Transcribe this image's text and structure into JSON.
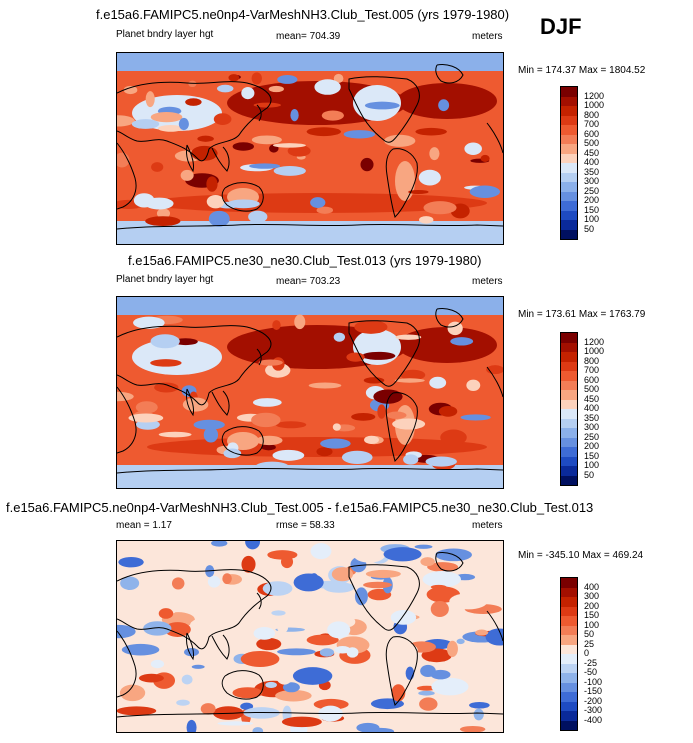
{
  "season": "DJF",
  "chart_data": [
    {
      "type": "heatmap",
      "title": "f.e15a6.FAMIPC5.ne0np4-VarMeshNH3.Club_Test.005 (yrs 1979-1980)",
      "variable": "Planet bndry layer hgt",
      "stat_text": "mean= 704.39",
      "units": "meters",
      "min": 174.37,
      "max": 1804.52,
      "minmax_text": "Min = 174.37 Max = 1804.52",
      "levels": [
        "1200",
        "1000",
        "800",
        "700",
        "600",
        "500",
        "450",
        "400",
        "350",
        "300",
        "250",
        "200",
        "150",
        "100",
        "50"
      ],
      "colors": [
        "#7a0000",
        "#a30f00",
        "#c42200",
        "#dd3a14",
        "#ee5a30",
        "#f37d56",
        "#f8a681",
        "#fcd2bc",
        "#dbe8f8",
        "#b5cff2",
        "#8bb0ea",
        "#6690e0",
        "#3e6cd6",
        "#1e4bc2",
        "#0a2a9a",
        "#001060"
      ]
    },
    {
      "type": "heatmap",
      "title": "f.e15a6.FAMIPC5.ne30_ne30.Club_Test.013 (yrs 1979-1980)",
      "variable": "Planet bndry layer hgt",
      "stat_text": "mean= 703.23",
      "units": "meters",
      "min": 173.61,
      "max": 1763.79,
      "minmax_text": "Min = 173.61 Max = 1763.79",
      "levels": [
        "1200",
        "1000",
        "800",
        "700",
        "600",
        "500",
        "450",
        "400",
        "350",
        "300",
        "250",
        "200",
        "150",
        "100",
        "50"
      ],
      "colors": [
        "#7a0000",
        "#a30f00",
        "#c42200",
        "#dd3a14",
        "#ee5a30",
        "#f37d56",
        "#f8a681",
        "#fcd2bc",
        "#dbe8f8",
        "#b5cff2",
        "#8bb0ea",
        "#6690e0",
        "#3e6cd6",
        "#1e4bc2",
        "#0a2a9a",
        "#001060"
      ]
    },
    {
      "type": "heatmap",
      "title": "f.e15a6.FAMIPC5.ne0np4-VarMeshNH3.Club_Test.005 - f.e15a6.FAMIPC5.ne30_ne30.Club_Test.013",
      "stat_left": "mean =   1.17",
      "stat_text": "rmse =  58.33",
      "units": "meters",
      "min": -345.1,
      "max": 469.24,
      "minmax_text": "Min = -345.10 Max = 469.24",
      "levels": [
        "400",
        "300",
        "200",
        "150",
        "100",
        "50",
        "25",
        "0",
        "-25",
        "-50",
        "-100",
        "-150",
        "-200",
        "-300",
        "-400"
      ],
      "colors": [
        "#7a0000",
        "#a30f00",
        "#c42200",
        "#dd3a14",
        "#ee5a30",
        "#f37d56",
        "#f8a681",
        "#fce6da",
        "#e4eefa",
        "#bcd3f3",
        "#8fb3ea",
        "#6690e0",
        "#3e6cd6",
        "#1e4bc2",
        "#0a2a9a",
        "#001060"
      ]
    }
  ]
}
